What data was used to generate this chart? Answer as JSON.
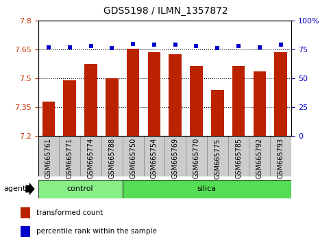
{
  "title": "GDS5198 / ILMN_1357872",
  "samples": [
    "GSM665761",
    "GSM665771",
    "GSM665774",
    "GSM665788",
    "GSM665750",
    "GSM665754",
    "GSM665769",
    "GSM665770",
    "GSM665775",
    "GSM665785",
    "GSM665792",
    "GSM665793"
  ],
  "bar_values": [
    7.38,
    7.49,
    7.575,
    7.502,
    7.655,
    7.635,
    7.625,
    7.565,
    7.44,
    7.565,
    7.535,
    7.635
  ],
  "percentile_values": [
    77,
    77,
    78,
    76,
    80,
    79,
    79,
    78,
    76,
    78,
    77,
    79
  ],
  "bar_color": "#bb2200",
  "dot_color": "#0000cc",
  "ylim_left": [
    7.2,
    7.8
  ],
  "ylim_right": [
    0,
    100
  ],
  "yticks_left": [
    7.2,
    7.35,
    7.5,
    7.65,
    7.8
  ],
  "yticks_right": [
    0,
    25,
    50,
    75,
    100
  ],
  "ytick_labels_left": [
    "7.2",
    "7.35",
    "7.5",
    "7.65",
    "7.8"
  ],
  "ytick_labels_right": [
    "0",
    "25",
    "50",
    "75",
    "100%"
  ],
  "hlines": [
    7.35,
    7.5,
    7.65
  ],
  "n_control": 4,
  "n_silica": 8,
  "group_control_label": "control",
  "group_silica_label": "silica",
  "group_control_color": "#88ee88",
  "group_silica_color": "#55dd55",
  "agent_label": "agent",
  "legend_bar_label": "transformed count",
  "legend_dot_label": "percentile rank within the sample",
  "bar_width": 0.6,
  "title_fontsize": 10,
  "tick_fontsize": 8,
  "sample_fontsize": 7,
  "legend_fontsize": 7.5,
  "cell_bg_color": "#cccccc"
}
